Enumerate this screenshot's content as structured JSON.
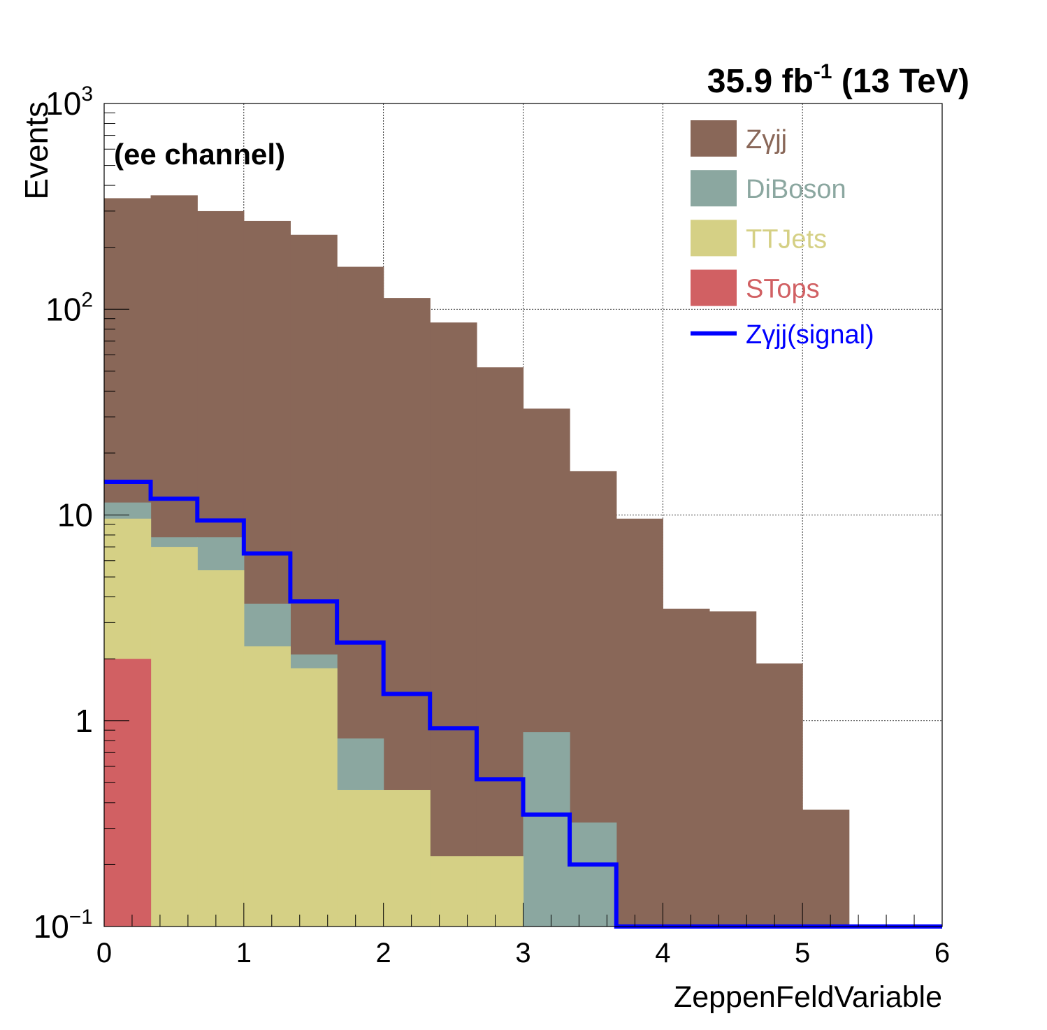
{
  "chart_data": {
    "type": "histogram",
    "stacked": true,
    "y_scale": "log",
    "lumi_label": {
      "main": "35.9 fb",
      "sup": "-1",
      "rest": " (13 TeV)"
    },
    "channel_label": "(ee channel)",
    "xlabel": "ZeppenFeldVariable",
    "ylabel": "Events",
    "xlim": [
      0,
      6
    ],
    "ylim": [
      0.1,
      1000
    ],
    "grid": true,
    "legend_position": "top-right",
    "bin_edges": [
      0,
      0.333,
      0.667,
      1.0,
      1.333,
      1.667,
      2.0,
      2.333,
      2.667,
      3.0,
      3.333,
      3.667,
      4.0,
      4.333,
      4.667,
      5.0,
      5.333,
      5.667,
      6.0
    ],
    "x_ticks": [
      "0",
      "1",
      "2",
      "3",
      "4",
      "5",
      "6"
    ],
    "y_ticks": [
      {
        "value": 0.1,
        "base": "10",
        "sup": "−1"
      },
      {
        "value": 1,
        "base": "1",
        "sup": ""
      },
      {
        "value": 10,
        "base": "10",
        "sup": ""
      },
      {
        "value": 100,
        "base": "10",
        "sup": "2"
      },
      {
        "value": 1000,
        "base": "10",
        "sup": "3"
      }
    ],
    "stack_series": [
      {
        "name": "STops",
        "color": "#d16063",
        "values": [
          2.0,
          0,
          0,
          0,
          0,
          0,
          0,
          0,
          0,
          0,
          0,
          0,
          0,
          0,
          0,
          0,
          0,
          0
        ]
      },
      {
        "name": "TTJets",
        "color": "#d5d085",
        "values": [
          7.6,
          7.0,
          5.4,
          2.3,
          1.8,
          0.46,
          0.46,
          0.22,
          0.22,
          0,
          0,
          0,
          0,
          0,
          0,
          0,
          0,
          0
        ]
      },
      {
        "name": "DiBoson",
        "color": "#8ba7a0",
        "values": [
          1.9,
          0.8,
          2.4,
          1.4,
          0.3,
          0.36,
          0,
          0,
          0,
          0.88,
          0.32,
          0,
          0,
          0,
          0,
          0,
          0,
          0
        ]
      },
      {
        "name": "Zγjj",
        "color": "#896758",
        "values": [
          335,
          350,
          292,
          265,
          228,
          160,
          113,
          86,
          52,
          32,
          16,
          9.6,
          3.5,
          3.4,
          1.9,
          0.37,
          0,
          0
        ]
      }
    ],
    "overlay_series": {
      "name": "Zγjj(signal)",
      "color": "#0000ff",
      "values": [
        14.5,
        12.0,
        9.4,
        6.5,
        3.8,
        2.4,
        1.35,
        0.92,
        0.52,
        0.35,
        0.2,
        0.1,
        0.1,
        0.1,
        0.1,
        0.1,
        0.1,
        0.1
      ]
    },
    "legend": [
      {
        "label": "Zγjj",
        "color": "#896758",
        "kind": "box"
      },
      {
        "label": "DiBoson",
        "color": "#8ba7a0",
        "kind": "box"
      },
      {
        "label": "TTJets",
        "color": "#d5d085",
        "kind": "box"
      },
      {
        "label": "STops",
        "color": "#d16063",
        "kind": "box"
      },
      {
        "label": "Zγjj(signal)",
        "color": "#0000ff",
        "kind": "line"
      }
    ]
  }
}
